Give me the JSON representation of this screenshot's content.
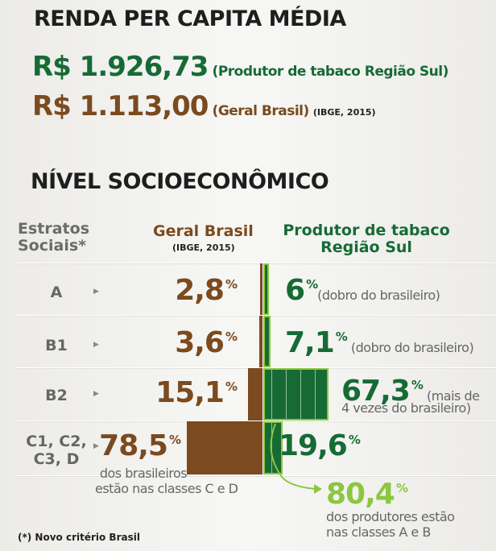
{
  "renda": {
    "title": "RENDA PER CAPITA MÉDIA",
    "produtor_value": "R$ 1.926,73",
    "produtor_label": "(Produtor de tabaco Região Sul)",
    "brasil_value": "R$ 1.113,00",
    "brasil_label": "(Geral Brasil)",
    "brasil_source": "(IBGE, 2015)"
  },
  "nivel": {
    "title": "NÍVEL SOCIOECONÔMICO"
  },
  "chart_data": {
    "type": "bar",
    "orientation": "diverging-horizontal",
    "headers": {
      "strata_1": "Estratos",
      "strata_2": "Sociais*",
      "brasil": "Geral Brasil",
      "brasil_source": "(IBGE, 2015)",
      "produtor_1": "Produtor de tabaco",
      "produtor_2": "Região Sul"
    },
    "categories": [
      "A",
      "B1",
      "B2",
      "C1, C2, C3, D"
    ],
    "series": [
      {
        "name": "Geral Brasil",
        "values": [
          2.8,
          3.6,
          15.1,
          78.5
        ],
        "labels": [
          "2,8",
          "3,6",
          "15,1",
          "78,5"
        ],
        "color": "#7b4a1e"
      },
      {
        "name": "Produtor de tabaco Região Sul",
        "values": [
          6,
          7.1,
          67.3,
          19.6
        ],
        "labels": [
          "6",
          "7,1",
          "67,3",
          "19,6"
        ],
        "color": "#166b34"
      }
    ],
    "unit": "%",
    "notes": [
      "(dobro do brasileiro)",
      "(dobro do brasileiro)",
      "(mais de",
      "4 vezes do brasileiro)"
    ],
    "cd_note_1": "dos brasileiros",
    "cd_note_2": "estão nas classes C e D",
    "callout_value": "80,4",
    "callout_1": "dos produtores estão",
    "callout_2": "nas classes A e B",
    "footnote": "(*) Novo critério Brasil"
  },
  "colors": {
    "green": "#166b34",
    "brown": "#7b4a1e",
    "lime": "#8dc63f"
  }
}
